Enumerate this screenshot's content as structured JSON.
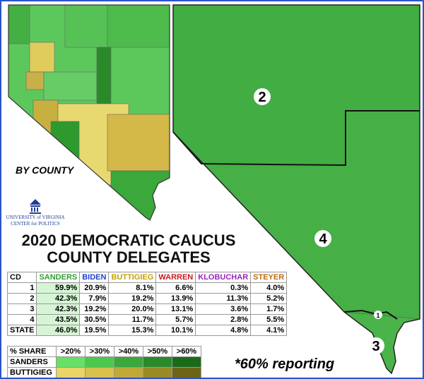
{
  "title_line1": "2020 DEMOCRATIC CAUCUS",
  "title_line2": "COUNTY DELEGATES",
  "subtitle": "BY COUNTY",
  "logo": {
    "line1": "UNIVERSITY of VIRGINIA",
    "line2": "CENTER for POLITICS"
  },
  "table": {
    "header": [
      "CD",
      "SANDERS",
      "BIDEN",
      "BUTTIGIEG",
      "WARREN",
      "KLOBUCHAR",
      "STEYER"
    ],
    "rows": [
      [
        "1",
        "59.9%",
        "20.9%",
        "8.1%",
        "6.6%",
        "0.3%",
        "4.0%"
      ],
      [
        "2",
        "42.3%",
        "7.9%",
        "19.2%",
        "13.9%",
        "11.3%",
        "5.2%"
      ],
      [
        "3",
        "42.3%",
        "19.2%",
        "20.0%",
        "13.1%",
        "3.6%",
        "1.7%"
      ],
      [
        "4",
        "43.5%",
        "30.5%",
        "11.7%",
        "5.7%",
        "2.8%",
        "5.5%"
      ],
      [
        "STATE",
        "46.0%",
        "19.5%",
        "15.3%",
        "10.1%",
        "4.8%",
        "4.1%"
      ]
    ]
  },
  "legend": {
    "header": [
      "% SHARE",
      ">20%",
      ">30%",
      ">40%",
      ">50%",
      ">60%"
    ],
    "rows": [
      "SANDERS",
      "BUTTIGIEG"
    ]
  },
  "map": {
    "district_labels": [
      "2",
      "4",
      "3",
      "1"
    ]
  },
  "footnote": "*60% reporting"
}
